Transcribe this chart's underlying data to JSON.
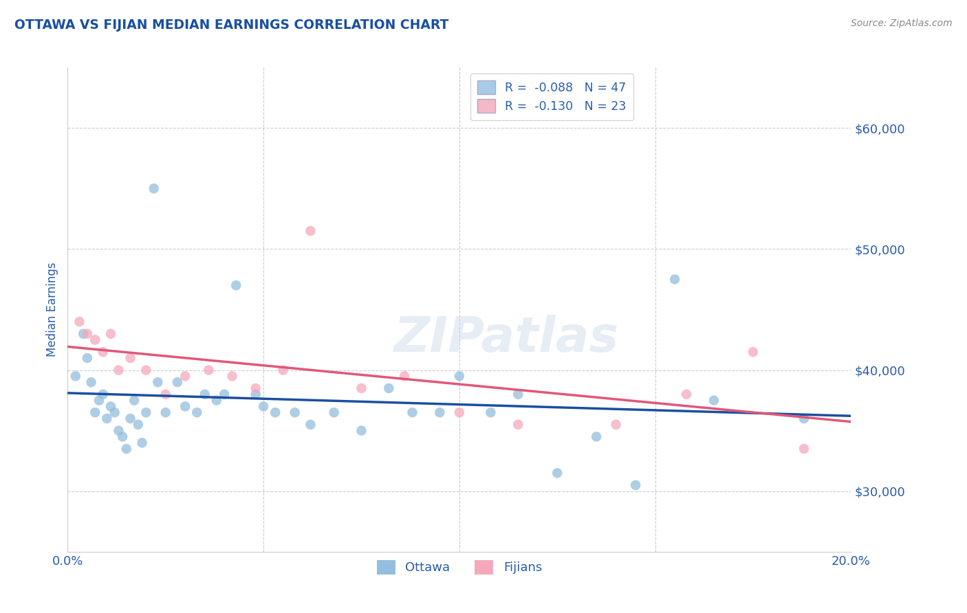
{
  "title": "OTTAWA VS FIJIAN MEDIAN EARNINGS CORRELATION CHART",
  "source": "Source: ZipAtlas.com",
  "ylabel": "Median Earnings",
  "watermark": "ZIPatlas",
  "legend_r_entries": [
    {
      "label": "R =  -0.088   N = 47",
      "color": "#a8cce8"
    },
    {
      "label": "R =  -0.130   N = 23",
      "color": "#f5b8c8"
    }
  ],
  "legend_bottom": [
    "Ottawa",
    "Fijians"
  ],
  "xlim": [
    0.0,
    0.2
  ],
  "ylim": [
    25000,
    65000
  ],
  "yticks": [
    30000,
    40000,
    50000,
    60000
  ],
  "xticks": [
    0.0,
    0.05,
    0.1,
    0.15,
    0.2
  ],
  "blue_scatter_color": "#93bedd",
  "pink_scatter_color": "#f5a8bc",
  "blue_line_color": "#1a4fa0",
  "pink_line_color": "#e05878",
  "title_color": "#1a4fa0",
  "axis_label_color": "#2a5dab",
  "tick_color": "#2a5dab",
  "grid_color": "#c8ccd8",
  "background_color": "#ffffff",
  "ottawa_x": [
    0.002,
    0.004,
    0.005,
    0.006,
    0.007,
    0.008,
    0.009,
    0.01,
    0.011,
    0.012,
    0.013,
    0.014,
    0.015,
    0.016,
    0.017,
    0.018,
    0.019,
    0.02,
    0.022,
    0.023,
    0.025,
    0.028,
    0.03,
    0.033,
    0.035,
    0.038,
    0.04,
    0.043,
    0.048,
    0.05,
    0.053,
    0.058,
    0.062,
    0.068,
    0.075,
    0.082,
    0.088,
    0.095,
    0.1,
    0.108,
    0.115,
    0.125,
    0.135,
    0.145,
    0.155,
    0.165,
    0.188
  ],
  "ottawa_y": [
    39500,
    43000,
    41000,
    39000,
    36500,
    37500,
    38000,
    36000,
    37000,
    36500,
    35000,
    34500,
    33500,
    36000,
    37500,
    35500,
    34000,
    36500,
    55000,
    39000,
    36500,
    39000,
    37000,
    36500,
    38000,
    37500,
    38000,
    47000,
    38000,
    37000,
    36500,
    36500,
    35500,
    36500,
    35000,
    38500,
    36500,
    36500,
    39500,
    36500,
    38000,
    31500,
    34500,
    30500,
    47500,
    37500,
    36000
  ],
  "fijian_x": [
    0.003,
    0.005,
    0.007,
    0.009,
    0.011,
    0.013,
    0.016,
    0.02,
    0.025,
    0.03,
    0.036,
    0.042,
    0.048,
    0.055,
    0.062,
    0.075,
    0.086,
    0.1,
    0.115,
    0.14,
    0.158,
    0.175,
    0.188
  ],
  "fijian_y": [
    44000,
    43000,
    42500,
    41500,
    43000,
    40000,
    41000,
    40000,
    38000,
    39500,
    40000,
    39500,
    38500,
    40000,
    51500,
    38500,
    39500,
    36500,
    35500,
    35500,
    38000,
    41500,
    33500
  ]
}
